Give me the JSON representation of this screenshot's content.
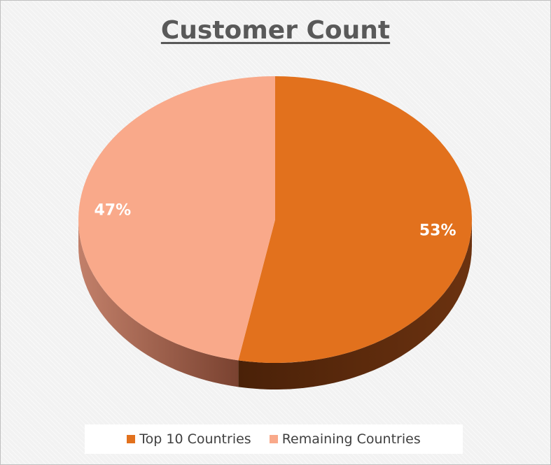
{
  "chart_data": {
    "type": "pie",
    "title": "Customer Count",
    "categories": [
      "Top 10 Countries",
      "Remaining Countries"
    ],
    "values": [
      53,
      47
    ],
    "data_labels": [
      "53%",
      "47%"
    ],
    "colors": [
      "#e2711d",
      "#f9a98a"
    ],
    "side_colors": [
      "#6b3210",
      "#b06a50"
    ],
    "legend_position": "bottom",
    "style": "3d"
  }
}
